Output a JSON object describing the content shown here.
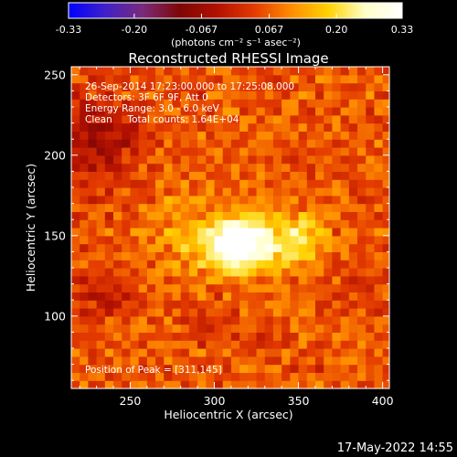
{
  "colorbar": {
    "tick_labels": [
      "-0.33",
      "-0.20",
      "-0.067",
      "0.067",
      "0.20",
      "0.33"
    ],
    "tick_values": [
      -0.33,
      -0.2,
      -0.067,
      0.067,
      0.2,
      0.33
    ],
    "range": [
      -0.33,
      0.33
    ],
    "units_label": "(photons cm⁻² s⁻¹ asec⁻²)",
    "colors": [
      "#0000ff",
      "#4020c8",
      "#7a2a7a",
      "#7e0606",
      "#b21000",
      "#e33a00",
      "#ff8c00",
      "#ffd200",
      "#ffffc8",
      "#ffffff"
    ]
  },
  "chart_data": {
    "type": "heatmap",
    "title": "Reconstructed RHESSI Image",
    "xlabel": "Heliocentric X (arcsec)",
    "ylabel": "Heliocentric Y (arcsec)",
    "xlim": [
      215,
      404
    ],
    "ylim": [
      55,
      255
    ],
    "x_ticks": [
      250,
      300,
      350,
      400
    ],
    "x_tick_labels": [
      "250",
      "300",
      "350",
      "400"
    ],
    "y_ticks": [
      100,
      150,
      200,
      250
    ],
    "y_tick_labels": [
      "100",
      "150",
      "200",
      "250"
    ],
    "annotations": [
      "26-Sep-2014 17:23:00.000 to 17:25:08.000",
      "Detectors: 3F 6F 9F, Att 0",
      "Energy Range: 3.0 - 6.0 keV",
      "Clean     Total counts: 1.64E+04"
    ],
    "peak_label": "Position of Peak = [311,145]",
    "peak": {
      "x": 311,
      "y": 145,
      "value": 0.33
    },
    "colormap": "red-temperature (blue for negative)",
    "background_level": 0.06,
    "sources": [
      {
        "x": 311,
        "y": 145,
        "width": 11,
        "value": 0.28
      },
      {
        "x": 330,
        "y": 147,
        "width": 14,
        "value": 0.16
      },
      {
        "x": 355,
        "y": 148,
        "width": 10,
        "value": 0.12
      },
      {
        "x": 285,
        "y": 150,
        "width": 20,
        "value": 0.06
      }
    ],
    "negative_regions": [
      {
        "x": 230,
        "y": 210,
        "width": 18,
        "value": -0.13
      },
      {
        "x": 232,
        "y": 116,
        "width": 12,
        "value": -0.08
      },
      {
        "x": 300,
        "y": 95,
        "width": 10,
        "value": -0.05
      },
      {
        "x": 385,
        "y": 115,
        "width": 10,
        "value": -0.04
      }
    ]
  },
  "footer": {
    "timestamp": "17-May-2022 14:55"
  }
}
